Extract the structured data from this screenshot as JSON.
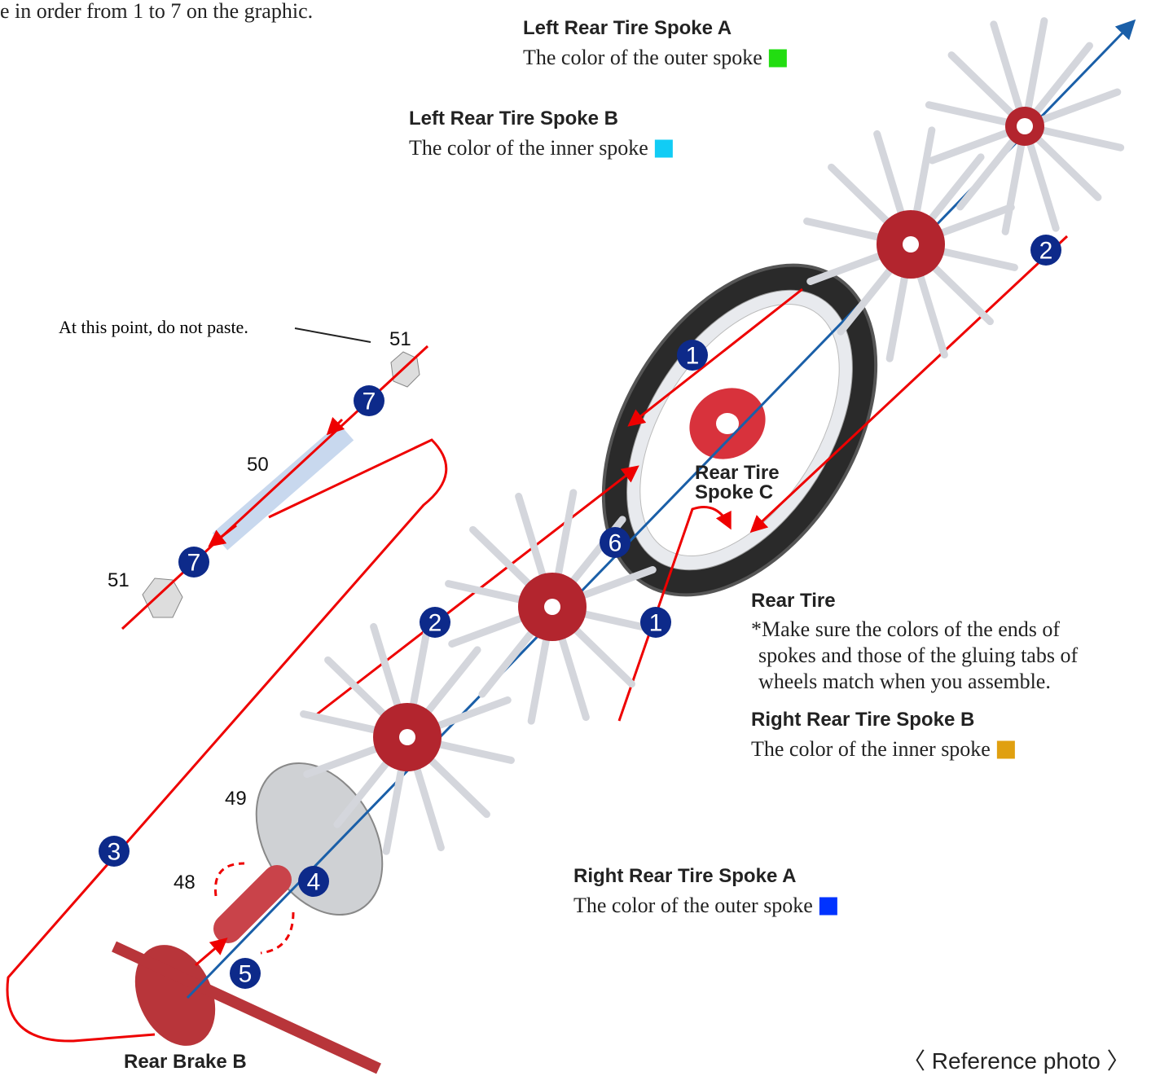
{
  "intro": "e in order from 1 to 7 on the graphic.",
  "labels": [
    {
      "title": "Left Rear Tire Spoke A",
      "text": "The color of the outer spoke",
      "color": "#22dd11"
    },
    {
      "title": "Left Rear Tire Spoke B",
      "text": "The color of the inner spoke",
      "color": "#11ccf5"
    },
    {
      "title": "Right Rear Tire Spoke B",
      "text": "The color of the inner spoke",
      "color": "#e0a010"
    },
    {
      "title": "Right Rear Tire Spoke A",
      "text": "The color of the outer spoke",
      "color": "#0033ff"
    }
  ],
  "callout": "At this point, do not paste.",
  "parts": [
    "51",
    "51",
    "50",
    "49",
    "48"
  ],
  "spoke_c": [
    "Rear Tire",
    "Spoke C"
  ],
  "rear_tire": {
    "title": "Rear Tire",
    "note": [
      "*Make sure the colors of the ends of",
      "spokes and those of the gluing tabs of",
      "wheels match when you assemble."
    ]
  },
  "rear_brake": "Rear Brake B",
  "reference": "〈 Reference photo 〉",
  "steps": [
    "7",
    "7",
    "2",
    "1",
    "6",
    "2",
    "1",
    "3",
    "4",
    "5"
  ]
}
